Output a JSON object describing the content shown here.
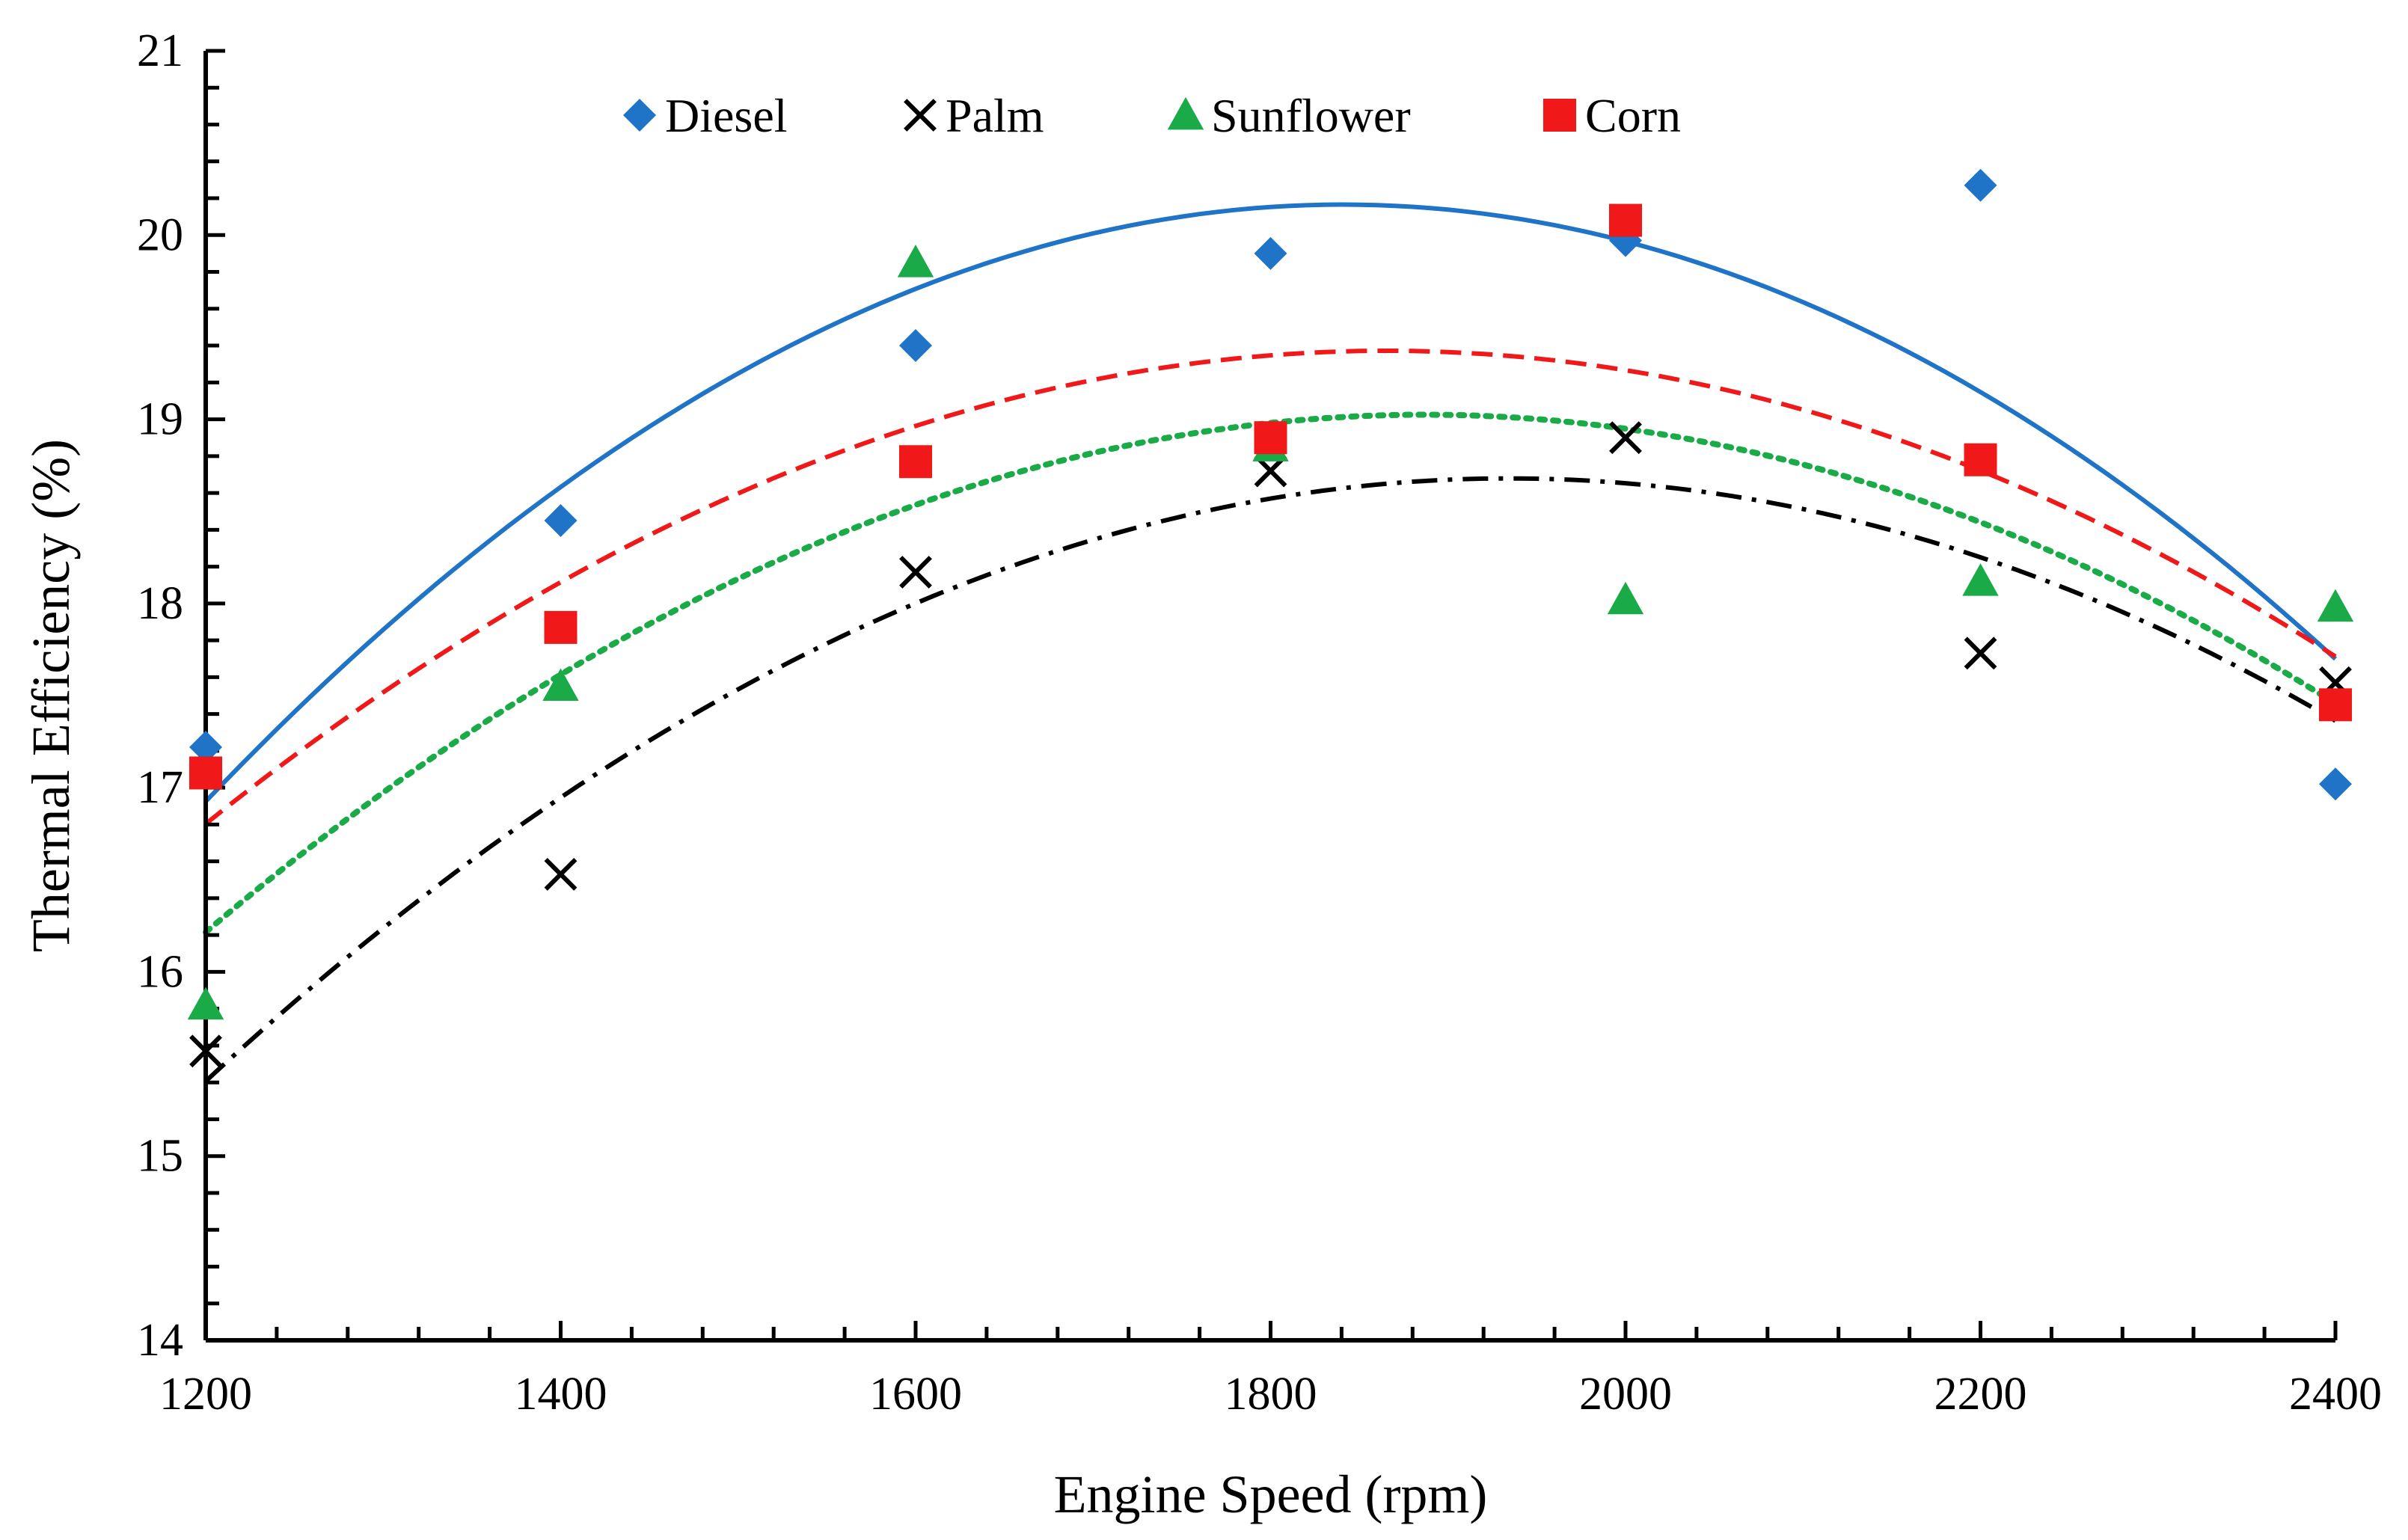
{
  "chart_data": {
    "type": "scatter",
    "xlabel": "Engine Speed (rpm)",
    "ylabel": "Thermal Efficiency (%)",
    "xlim": [
      1200,
      2400
    ],
    "ylim": [
      14,
      21
    ],
    "x_ticks": [
      1200,
      1400,
      1600,
      1800,
      2000,
      2200,
      2400
    ],
    "y_ticks": [
      14,
      15,
      16,
      17,
      18,
      19,
      20,
      21
    ],
    "grid": false,
    "legend_position": "top",
    "trendline": "polynomial order 2",
    "x": [
      1200,
      1400,
      1600,
      1800,
      2000,
      2200,
      2400
    ],
    "series": [
      {
        "name": "Diesel",
        "marker": "diamond",
        "color": "#1F74C8",
        "line_style": "solid",
        "values": [
          17.22,
          18.45,
          19.4,
          19.9,
          19.97,
          20.27,
          17.02
        ]
      },
      {
        "name": "Palm",
        "marker": "x",
        "color": "#000000",
        "line_style": "dash-dot",
        "values": [
          15.57,
          16.53,
          18.17,
          18.72,
          18.9,
          17.73,
          17.57
        ]
      },
      {
        "name": "Sunflower",
        "marker": "triangle",
        "color": "#1AAA48",
        "line_style": "dotted",
        "values": [
          15.82,
          17.55,
          19.85,
          18.85,
          18.02,
          18.12,
          17.98
        ]
      },
      {
        "name": "Corn",
        "marker": "square",
        "color": "#F01818",
        "line_style": "dashed",
        "values": [
          17.08,
          17.87,
          18.77,
          18.9,
          20.08,
          18.78,
          17.45
        ]
      }
    ]
  }
}
